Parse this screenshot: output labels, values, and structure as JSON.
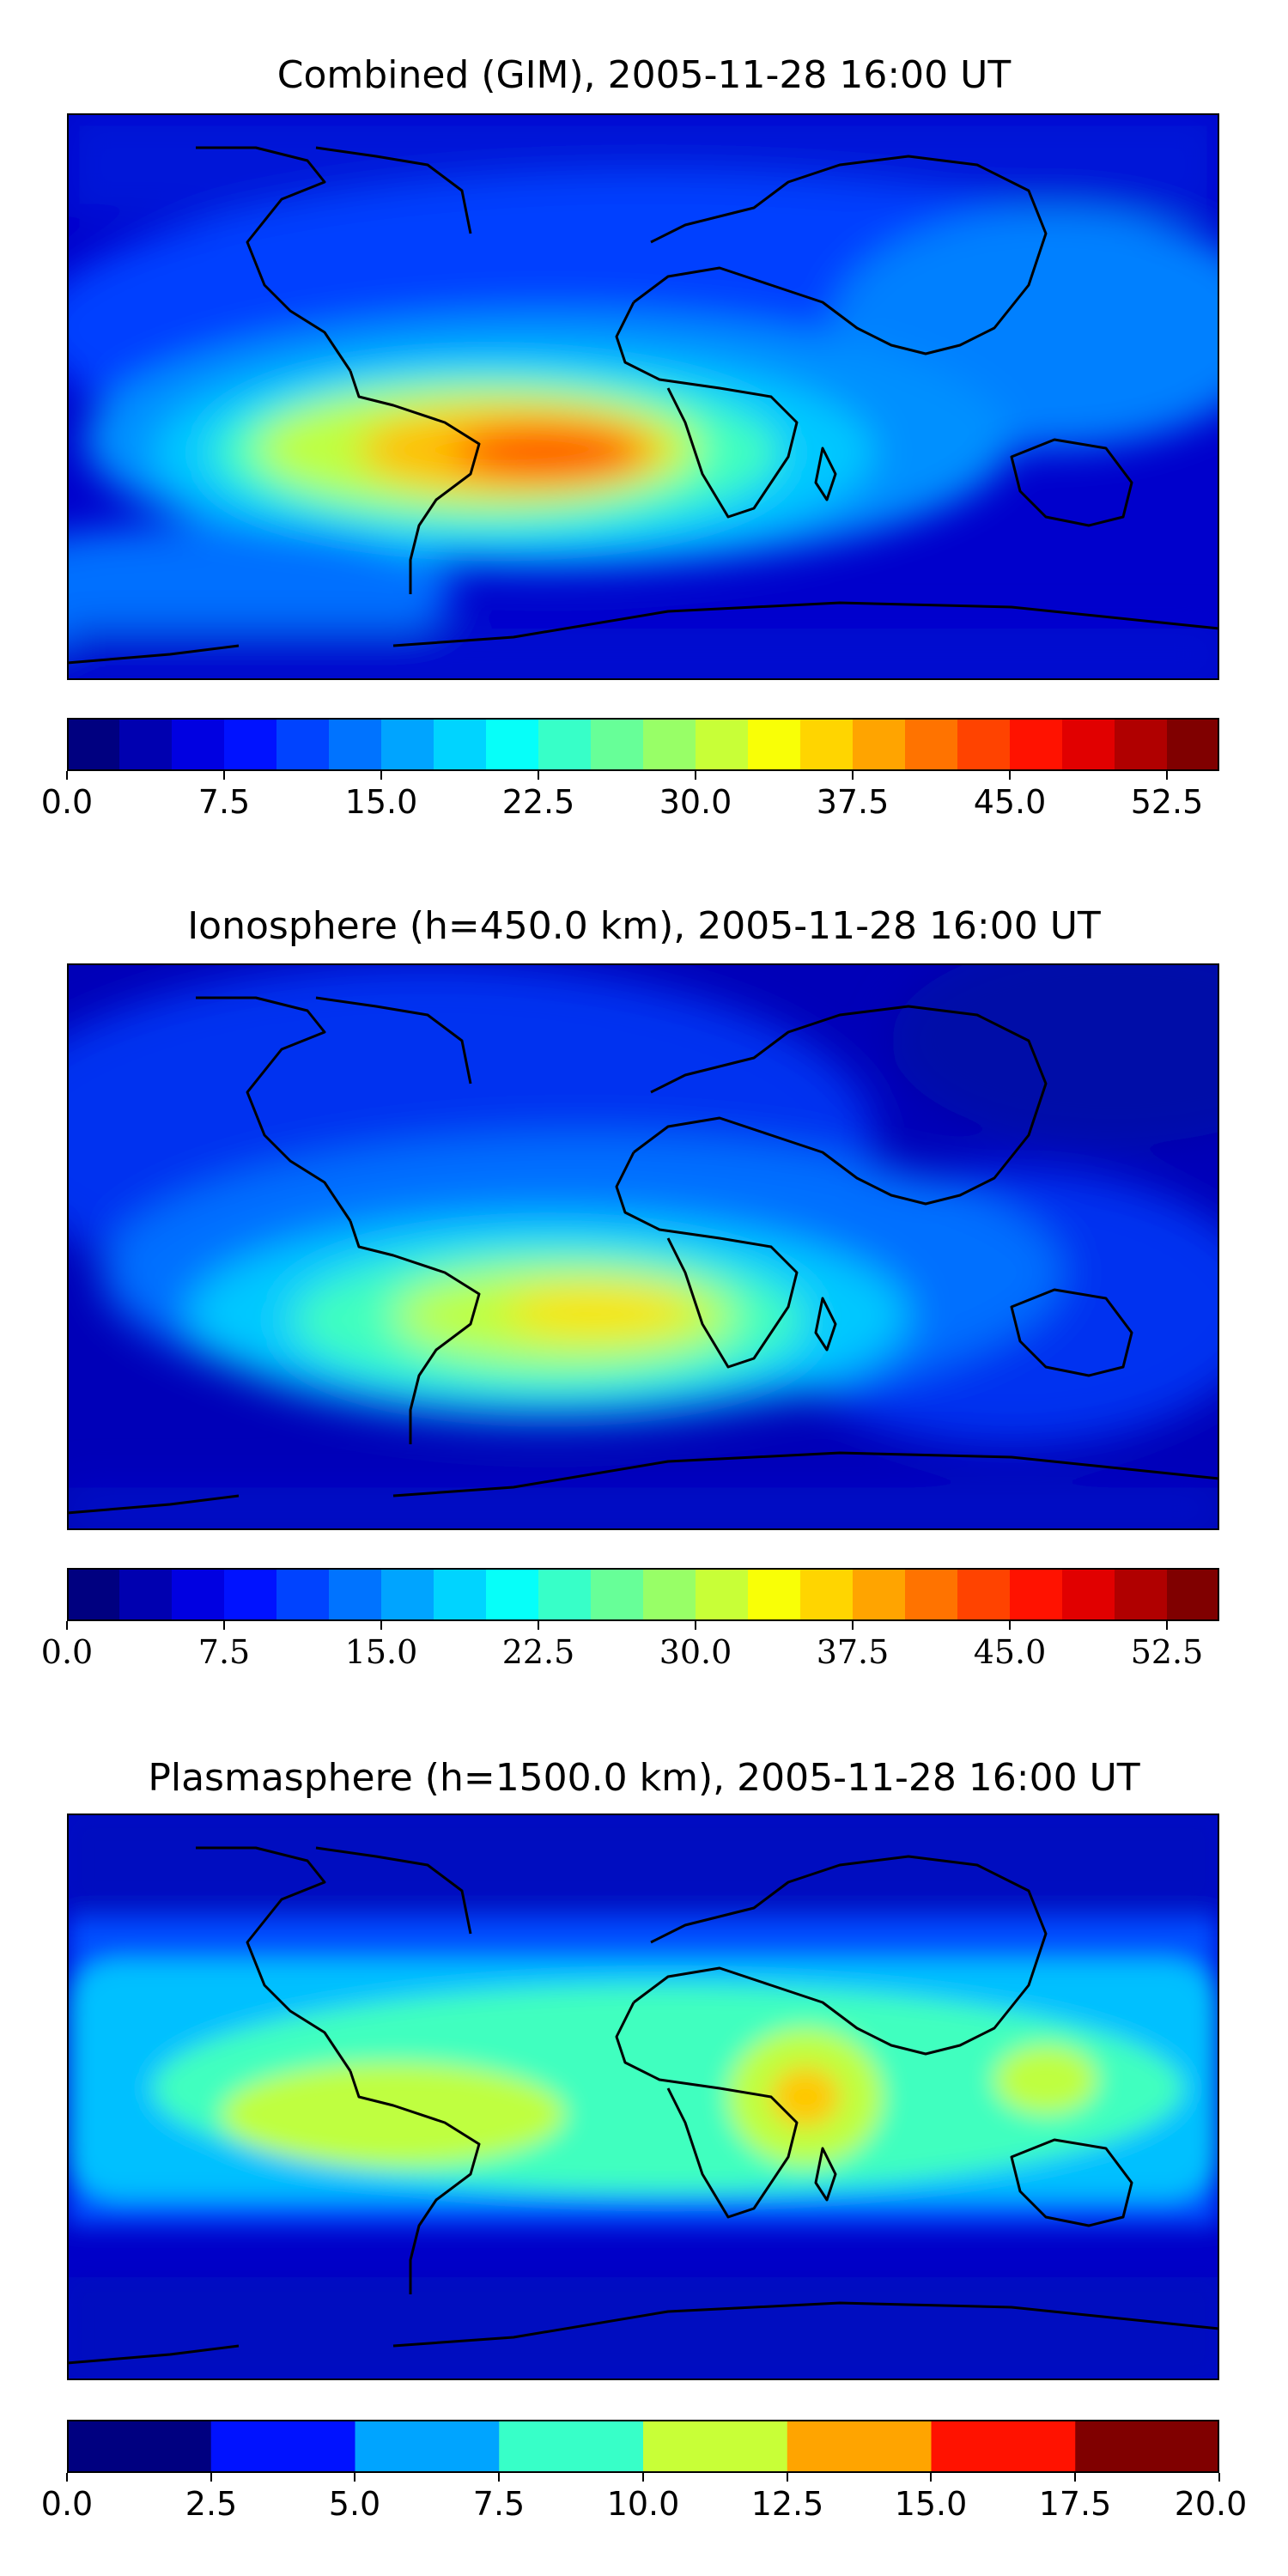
{
  "chart_data": [
    {
      "type": "heatmap",
      "title": "Combined (GIM), 2005-11-28 16:00 UT",
      "projection": "world map, coastlines",
      "colormap": "jet",
      "levels": [
        0.0,
        2.5,
        5.0,
        7.5,
        10.0,
        12.5,
        15.0,
        17.5,
        20.0,
        22.5,
        25.0,
        27.5,
        30.0,
        32.5,
        35.0,
        37.5,
        40.0,
        42.5,
        45.0,
        47.5,
        50.0,
        52.5,
        55.0
      ],
      "colorbar_ticks": [
        "0.0",
        "7.5",
        "15.0",
        "22.5",
        "30.0",
        "37.5",
        "45.0",
        "52.5"
      ],
      "colorbar_tick_values": [
        0.0,
        7.5,
        15.0,
        22.5,
        30.0,
        37.5,
        45.0,
        52.5
      ],
      "value_range": [
        0,
        55
      ],
      "max_region": "South Atlantic between South America and Africa, ~45"
    },
    {
      "type": "heatmap",
      "title": "Ionosphere  (h=450.0 km), 2005-11-28 16:00 UT",
      "projection": "world map, coastlines",
      "colormap": "jet",
      "levels": [
        0.0,
        2.5,
        5.0,
        7.5,
        10.0,
        12.5,
        15.0,
        17.5,
        20.0,
        22.5,
        25.0,
        27.5,
        30.0,
        32.5,
        35.0,
        37.5,
        40.0,
        42.5,
        45.0,
        47.5,
        50.0,
        52.5,
        55.0
      ],
      "colorbar_ticks": [
        "0.0",
        "7.5",
        "15.0",
        "22.5",
        "30.0",
        "37.5",
        "45.0",
        "52.5"
      ],
      "colorbar_tick_values": [
        0.0,
        7.5,
        15.0,
        22.5,
        30.0,
        37.5,
        45.0,
        52.5
      ],
      "value_range": [
        0,
        55
      ],
      "max_region": "South Atlantic, ~35"
    },
    {
      "type": "heatmap",
      "title": "Plasmasphere (h=1500.0 km), 2005-11-28 16:00 UT",
      "projection": "world map, coastlines",
      "colormap": "jet",
      "levels": [
        0.0,
        2.5,
        5.0,
        7.5,
        10.0,
        12.5,
        15.0,
        17.5,
        20.0
      ],
      "colorbar_ticks": [
        "0.0",
        "2.5",
        "5.0",
        "7.5",
        "10.0",
        "12.5",
        "15.0",
        "17.5",
        "20.0"
      ],
      "colorbar_tick_values": [
        0.0,
        2.5,
        5.0,
        7.5,
        10.0,
        12.5,
        15.0,
        17.5,
        20.0
      ],
      "value_range": [
        0,
        20
      ],
      "max_region": "East Africa, ~13"
    }
  ]
}
